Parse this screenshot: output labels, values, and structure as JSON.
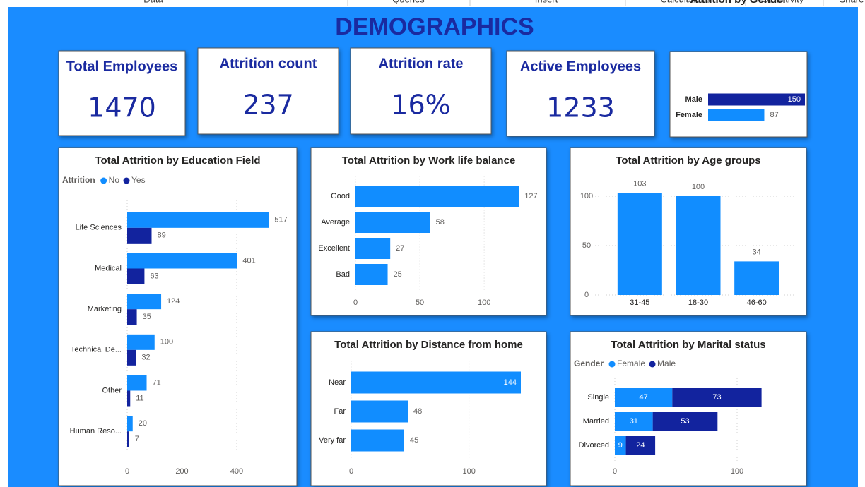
{
  "tabs": [
    "Data",
    "Queries",
    "Insert",
    "Calculations",
    "Sensitivity",
    "Share"
  ],
  "title": "DEMOGRAPHICS",
  "kpis": [
    {
      "label": "Total Employees",
      "value": 1470
    },
    {
      "label": "Attrition count",
      "value": 237
    },
    {
      "label": "Attrition rate",
      "value": "16%"
    },
    {
      "label": "Active Employees",
      "value": 1233
    }
  ],
  "chart_data": [
    {
      "type": "hbar",
      "title": "Attrition by Gender",
      "categories": [
        "Male",
        "Female"
      ],
      "values": [
        150,
        87
      ],
      "colors": [
        "#12239e",
        "#118dff"
      ],
      "xlim": [
        0,
        150
      ]
    },
    {
      "type": "hbar",
      "title": "Total Attrition by Education Field",
      "legend_title": "Attrition",
      "categories": [
        "Life Sciences",
        "Medical",
        "Marketing",
        "Technical De...",
        "Other",
        "Human Reso..."
      ],
      "series": [
        {
          "name": "No",
          "color": "#118dff",
          "values": [
            517,
            401,
            124,
            100,
            71,
            20
          ]
        },
        {
          "name": "Yes",
          "color": "#12239e",
          "values": [
            89,
            63,
            35,
            32,
            11,
            7
          ]
        }
      ],
      "xlim": [
        0,
        560
      ],
      "xticks": [
        0,
        200,
        400
      ],
      "grid": true
    },
    {
      "type": "hbar",
      "title": "Total Attrition by Work life balance",
      "categories": [
        "Good",
        "Average",
        "Excellent",
        "Bad"
      ],
      "values": [
        127,
        58,
        27,
        25
      ],
      "color": "#118dff",
      "xlim": [
        0,
        140
      ],
      "xticks": [
        0,
        50,
        100
      ],
      "grid": true
    },
    {
      "type": "vbar",
      "title": "Total Attrition by Age groups",
      "categories": [
        "31-45",
        "18-30",
        "46-60"
      ],
      "values": [
        103,
        100,
        34
      ],
      "color": "#118dff",
      "ylim": [
        0,
        110
      ],
      "yticks": [
        0,
        50,
        100
      ],
      "grid": true
    },
    {
      "type": "hbar",
      "title": "Total Attrition by Distance from home",
      "categories": [
        "Near",
        "Far",
        "Very far"
      ],
      "values": [
        144,
        48,
        45
      ],
      "color": "#118dff",
      "xlim": [
        0,
        150
      ],
      "xticks": [
        0,
        100
      ],
      "grid": true
    },
    {
      "type": "hbar",
      "title": "Total Attrition by Marital status",
      "legend_title": "Gender",
      "stacked": true,
      "categories": [
        "Single",
        "Married",
        "Divorced"
      ],
      "series": [
        {
          "name": "Female",
          "color": "#118dff",
          "values": [
            47,
            31,
            9
          ]
        },
        {
          "name": "Male",
          "color": "#12239e",
          "values": [
            73,
            53,
            24
          ]
        }
      ],
      "xlim": [
        0,
        150
      ],
      "xticks": [
        0,
        100
      ],
      "grid": true
    }
  ]
}
